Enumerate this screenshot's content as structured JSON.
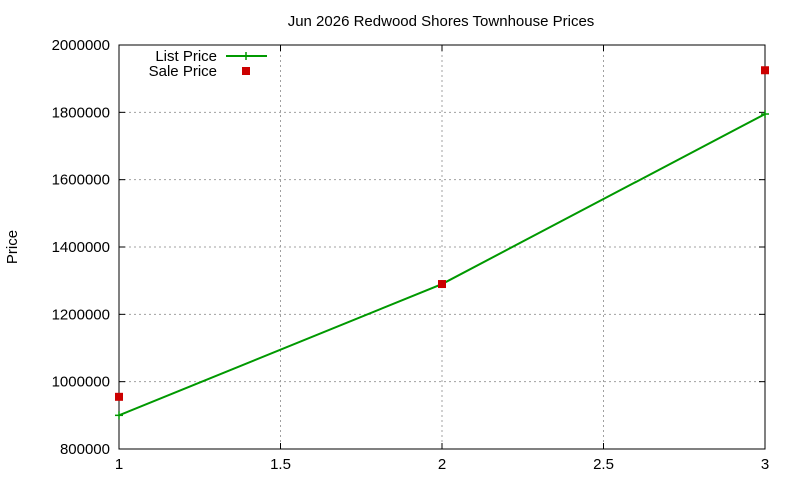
{
  "chart_data": {
    "type": "line",
    "title": "Jun 2026 Redwood Shores Townhouse Prices",
    "xlabel": "",
    "ylabel": "Price",
    "xlim": [
      1,
      3
    ],
    "ylim": [
      800000,
      2000000
    ],
    "x_ticks": [
      "1",
      "1.5",
      "2",
      "2.5",
      "3"
    ],
    "x_tick_values": [
      1,
      1.5,
      2,
      2.5,
      3
    ],
    "y_ticks": [
      "800000",
      "1000000",
      "1200000",
      "1400000",
      "1600000",
      "1800000",
      "2000000"
    ],
    "y_tick_values": [
      800000,
      1000000,
      1200000,
      1400000,
      1600000,
      1800000,
      2000000
    ],
    "grid": true,
    "legend_position": "top-left",
    "series": [
      {
        "name": "List Price",
        "style": "line+cross",
        "color": "#009900",
        "x": [
          1,
          2,
          3
        ],
        "y": [
          900000,
          1290000,
          1795000
        ]
      },
      {
        "name": "Sale Price",
        "style": "square-points",
        "color": "#cc0000",
        "x": [
          1,
          2,
          3
        ],
        "y": [
          955000,
          1290000,
          1925000
        ]
      }
    ]
  }
}
